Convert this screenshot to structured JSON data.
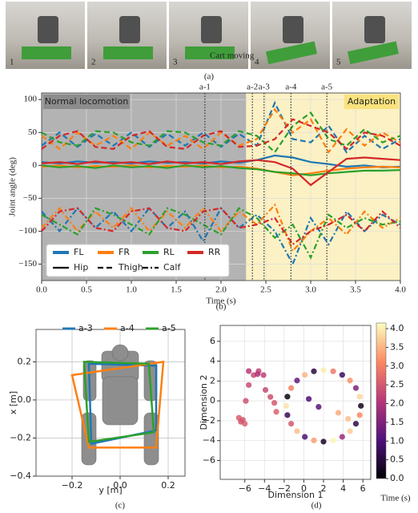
{
  "photos": {
    "labels": [
      "1",
      "2",
      "3",
      "4",
      "5"
    ],
    "caption": "Cart moving",
    "panel": "(a)"
  },
  "chart_data": [
    {
      "type": "line",
      "panel": "(b)",
      "xlabel": "Time (s)",
      "ylabel": "Joint angle (deg)",
      "xlim": [
        0,
        4
      ],
      "ylim": [
        -175,
        110
      ],
      "xticks": [
        {
          "value": 0,
          "label": "0.0"
        },
        {
          "value": 0.5,
          "label": "0.5"
        },
        {
          "value": 1,
          "label": "1.0"
        },
        {
          "value": 1.5,
          "label": "1.5"
        },
        {
          "value": 2,
          "label": "2.0"
        },
        {
          "value": 2.5,
          "label": "2.5"
        },
        {
          "value": 3,
          "label": "3.0"
        },
        {
          "value": 3.5,
          "label": "3.5"
        },
        {
          "value": 4,
          "label": "4.0"
        }
      ],
      "yticks": [
        {
          "value": -150,
          "label": "−150"
        },
        {
          "value": -100,
          "label": "−100"
        },
        {
          "value": -50,
          "label": "−50"
        },
        0,
        50,
        100
      ],
      "grid": true,
      "regions": [
        {
          "label": "Normal locomotion",
          "start": 0,
          "end": 2.28,
          "color": "#b3b3b3",
          "label_color": "#8c8c8c",
          "text_color": "#ffffff"
        },
        {
          "label": "Adaptation",
          "start": 2.28,
          "end": 4,
          "color": "#fbf1c4",
          "label_color": "#f9e27d",
          "text_color": "#333333"
        }
      ],
      "markers": [
        {
          "label": "a-1",
          "x": 1.82
        },
        {
          "label": "a-2",
          "x": 2.35
        },
        {
          "label": "a-3",
          "x": 2.48
        },
        {
          "label": "a-4",
          "x": 2.78
        },
        {
          "label": "a-5",
          "x": 3.18
        }
      ],
      "legs": [
        {
          "name": "FL",
          "color": "#1f77b4"
        },
        {
          "name": "FR",
          "color": "#ff7f0e"
        },
        {
          "name": "RL",
          "color": "#2ca02c"
        },
        {
          "name": "RR",
          "color": "#d62728"
        }
      ],
      "joints": [
        {
          "name": "Hip",
          "dash": "solid"
        },
        {
          "name": "Thigh",
          "dash": "dashed"
        },
        {
          "name": "Calf",
          "dash": "dashdot"
        }
      ],
      "x": [
        0,
        0.2,
        0.4,
        0.6,
        0.8,
        1,
        1.2,
        1.4,
        1.6,
        1.8,
        2,
        2.2,
        2.4,
        2.6,
        2.8,
        3,
        3.2,
        3.4,
        3.6,
        3.8,
        4
      ],
      "series": [
        {
          "leg": "FL",
          "joint": "Hip",
          "values": [
            5,
            3,
            6,
            4,
            5,
            3,
            6,
            4,
            5,
            3,
            6,
            4,
            8,
            15,
            12,
            5,
            2,
            -2,
            0,
            -3,
            -2
          ]
        },
        {
          "leg": "FR",
          "joint": "Hip",
          "values": [
            -2,
            0,
            -3,
            -1,
            -2,
            0,
            -3,
            -1,
            -2,
            0,
            -3,
            -2,
            -5,
            -10,
            -15,
            -12,
            -8,
            -5,
            -3,
            -2,
            -3
          ]
        },
        {
          "leg": "RL",
          "joint": "Hip",
          "values": [
            0,
            -3,
            -1,
            -4,
            0,
            -3,
            -1,
            -4,
            0,
            -3,
            -1,
            -4,
            -6,
            -10,
            -12,
            -15,
            -12,
            -10,
            -8,
            -8,
            -7
          ]
        },
        {
          "leg": "RR",
          "joint": "Hip",
          "values": [
            3,
            5,
            2,
            6,
            3,
            5,
            2,
            6,
            3,
            5,
            2,
            6,
            8,
            5,
            -5,
            -30,
            -10,
            10,
            12,
            10,
            8
          ]
        },
        {
          "leg": "FL",
          "joint": "Thigh",
          "values": [
            30,
            50,
            28,
            48,
            30,
            50,
            28,
            48,
            30,
            50,
            28,
            48,
            30,
            95,
            40,
            35,
            60,
            20,
            45,
            25,
            40
          ]
        },
        {
          "leg": "FR",
          "joint": "Thigh",
          "values": [
            45,
            25,
            50,
            30,
            45,
            25,
            50,
            30,
            45,
            25,
            50,
            30,
            40,
            85,
            50,
            70,
            20,
            55,
            30,
            50,
            35
          ]
        },
        {
          "leg": "RL",
          "joint": "Thigh",
          "values": [
            50,
            35,
            30,
            52,
            50,
            35,
            30,
            52,
            50,
            35,
            30,
            52,
            45,
            20,
            60,
            80,
            40,
            30,
            55,
            35,
            45
          ]
        },
        {
          "leg": "RR",
          "joint": "Thigh",
          "values": [
            25,
            45,
            52,
            28,
            25,
            45,
            52,
            28,
            25,
            45,
            52,
            28,
            30,
            40,
            70,
            60,
            50,
            25,
            50,
            45,
            30
          ]
        },
        {
          "leg": "FL",
          "joint": "Calf",
          "values": [
            -70,
            -100,
            -65,
            -95,
            -70,
            -100,
            -65,
            -95,
            -70,
            -115,
            -65,
            -95,
            -75,
            -100,
            -150,
            -80,
            -120,
            -70,
            -100,
            -75,
            -90
          ]
        },
        {
          "leg": "FR",
          "joint": "Calf",
          "values": [
            -95,
            -65,
            -100,
            -70,
            -95,
            -65,
            -100,
            -70,
            -95,
            -65,
            -100,
            -70,
            -90,
            -60,
            -130,
            -100,
            -80,
            -105,
            -70,
            -95,
            -80
          ]
        },
        {
          "leg": "RL",
          "joint": "Calf",
          "values": [
            -75,
            -90,
            -105,
            -65,
            -75,
            -90,
            -105,
            -65,
            -75,
            -90,
            -105,
            -65,
            -80,
            -110,
            -90,
            -140,
            -75,
            -95,
            -80,
            -90,
            -85
          ]
        },
        {
          "leg": "RR",
          "joint": "Calf",
          "values": [
            -100,
            -70,
            -65,
            -95,
            -100,
            -70,
            -65,
            -95,
            -100,
            -70,
            -65,
            -95,
            -90,
            -80,
            -120,
            -100,
            -90,
            -75,
            -100,
            -70,
            -95
          ]
        }
      ]
    },
    {
      "type": "polygon",
      "panel": "(c)",
      "xlabel": "y [m]",
      "ylabel": "x [m]",
      "xlim": [
        -0.35,
        0.27
      ],
      "ylim": [
        -0.4,
        0.37
      ],
      "grid": true,
      "xticks": [
        {
          "value": -0.2,
          "label": "−0.2"
        },
        {
          "value": 0,
          "label": "0.0"
        },
        {
          "value": 0.2,
          "label": "0.2"
        }
      ],
      "yticks": [
        {
          "value": -0.4,
          "label": "−0.4"
        },
        {
          "value": -0.2,
          "label": "−0.2"
        },
        {
          "value": 0,
          "label": "0.0"
        },
        {
          "value": 0.2,
          "label": "0.2"
        }
      ],
      "series": [
        {
          "name": "a-3",
          "color": "#1f77b4",
          "x": [
            -0.13,
            0.15,
            0.15,
            -0.12
          ],
          "y": [
            0.19,
            0.18,
            -0.16,
            -0.23
          ]
        },
        {
          "name": "a-4",
          "color": "#ff7f0e",
          "x": [
            -0.2,
            0.18,
            0.15,
            -0.13
          ],
          "y": [
            0.13,
            0.2,
            -0.25,
            -0.25
          ]
        },
        {
          "name": "a-5",
          "color": "#2ca02c",
          "x": [
            -0.15,
            0.12,
            0.14,
            -0.13
          ],
          "y": [
            0.2,
            0.19,
            -0.17,
            -0.22
          ]
        }
      ]
    },
    {
      "type": "scatter",
      "panel": "(d)",
      "xlabel": "Dimension 1",
      "ylabel": "Dimension 2",
      "colorbar_label": "Time (s)",
      "xlim": [
        -8.5,
        6.8
      ],
      "ylim": [
        -7.9,
        7.6
      ],
      "clim": [
        0,
        4.15
      ],
      "grid": true,
      "colormap": [
        "#000004",
        "#51127c",
        "#b73779",
        "#fc8961",
        "#fcfdbf"
      ],
      "xticks": [
        {
          "value": -6,
          "label": "−6"
        },
        {
          "value": -4,
          "label": "−4"
        },
        {
          "value": -2,
          "label": "−2"
        },
        0,
        2,
        4,
        6
      ],
      "yticks": [
        {
          "value": -6,
          "label": "−6"
        },
        {
          "value": -4,
          "label": "−4"
        },
        {
          "value": -2,
          "label": "−2"
        },
        0,
        2,
        4,
        6
      ],
      "cticks": [
        {
          "value": 0,
          "label": "0.0"
        },
        {
          "value": 0.5,
          "label": "0.5"
        },
        {
          "value": 1,
          "label": "1.0"
        },
        {
          "value": 1.5,
          "label": "1.5"
        },
        {
          "value": 2,
          "label": "2.0"
        },
        {
          "value": 2.5,
          "label": "2.5"
        },
        {
          "value": 3,
          "label": "3.0"
        },
        {
          "value": 3.5,
          "label": "3.5"
        },
        {
          "value": 4,
          "label": "4.0"
        }
      ],
      "x": [
        5.8,
        5.67,
        5.29,
        4.69,
        3.9,
        2.98,
        2,
        1.02,
        0.1,
        -0.69,
        -1.29,
        -1.67,
        -1.8,
        -1.67,
        -1.29,
        -0.69,
        0.1,
        1.02,
        2,
        2.98,
        3.9,
        4.69,
        5.29,
        5.67,
        0.5,
        1.5,
        3.5,
        4.5,
        -6.2,
        -6.6,
        -6.0,
        -6.4,
        -5.9,
        -5.6,
        -5.1,
        -4.6,
        -4.1,
        -3.9,
        -3.4,
        -3.0,
        -2.8,
        -4.7,
        -5.6
      ],
      "y": [
        -0.5,
        0.43,
        1.3,
        2.05,
        2.62,
        2.98,
        3.1,
        2.98,
        2.62,
        2.05,
        1.3,
        0.43,
        -0.5,
        -1.43,
        -2.3,
        -3.05,
        -3.62,
        -3.98,
        -4.1,
        -3.98,
        -3.62,
        -3.05,
        -2.3,
        -1.43,
        0.2,
        -0.6,
        -1.2,
        -1.8,
        -1.9,
        -1.7,
        -2.3,
        -2.1,
        0.0,
        1.6,
        2.6,
        3.0,
        2.6,
        1.1,
        0.4,
        -0.2,
        -1.1,
        2.7,
        3.0
      ],
      "c": [
        0.2,
        3.8,
        1.5,
        3.2,
        0.8,
        2.9,
        4.0,
        0.5,
        3.5,
        1.2,
        3.0,
        0.1,
        3.9,
        0.7,
        2.5,
        3.6,
        1.0,
        3.3,
        0.3,
        4.1,
        1.8,
        3.7,
        0.6,
        3.1,
        1.0,
        1.1,
        3.4,
        3.6,
        2.5,
        2.55,
        2.6,
        2.45,
        2.4,
        2.35,
        2.3,
        2.25,
        2.2,
        2.3,
        2.4,
        2.5,
        2.6,
        2.0,
        2.1
      ]
    }
  ]
}
